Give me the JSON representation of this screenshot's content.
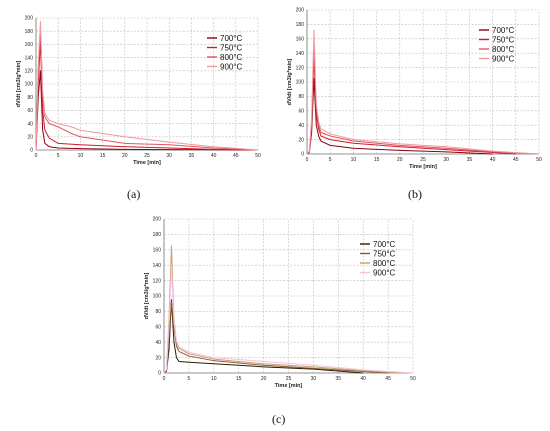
{
  "chart_data": [
    {
      "type": "line",
      "panel_label": "(a)",
      "xlabel": "Time [min]",
      "ylabel": "dV/dt [cm3/g*min]",
      "xlim": [
        0,
        50
      ],
      "ylim": [
        0,
        200
      ],
      "xticks": [
        0,
        5,
        10,
        15,
        20,
        25,
        30,
        35,
        40,
        45,
        50
      ],
      "yticks": [
        0,
        20,
        40,
        60,
        80,
        100,
        120,
        140,
        160,
        180,
        200
      ],
      "grid": true,
      "legend": "right",
      "series": [
        {
          "name": "700°C",
          "color": "#8b0010",
          "x": [
            0,
            0.5,
            1,
            1.5,
            2,
            3,
            4,
            5,
            10,
            20,
            30,
            40,
            50
          ],
          "y": [
            0,
            80,
            120,
            30,
            10,
            5,
            4,
            3,
            2,
            1,
            0.5,
            0.3,
            0
          ]
        },
        {
          "name": "750°C",
          "color": "#d01a2a",
          "x": [
            0,
            0.5,
            1,
            1.5,
            2,
            3,
            5,
            10,
            20,
            30,
            40,
            50
          ],
          "y": [
            0,
            100,
            165,
            60,
            30,
            18,
            10,
            8,
            5,
            3,
            1,
            0
          ]
        },
        {
          "name": "800°C",
          "color": "#e05560",
          "x": [
            0,
            0.5,
            1,
            1.5,
            2,
            3,
            5,
            8,
            10,
            20,
            30,
            40,
            50
          ],
          "y": [
            0,
            120,
            185,
            80,
            50,
            40,
            35,
            25,
            20,
            10,
            8,
            3,
            0
          ]
        },
        {
          "name": "900°C",
          "color": "#f09aa0",
          "x": [
            0,
            0.5,
            1,
            1.5,
            2,
            3,
            5,
            8,
            10,
            20,
            30,
            40,
            50
          ],
          "y": [
            0,
            130,
            195,
            90,
            55,
            45,
            40,
            35,
            30,
            20,
            12,
            5,
            0
          ]
        }
      ]
    },
    {
      "type": "line",
      "panel_label": "(b)",
      "xlabel": "Time [min]",
      "ylabel": "dV/dt [cm3/g*min]",
      "xlim": [
        0,
        50
      ],
      "ylim": [
        0,
        200
      ],
      "xticks": [
        0,
        5,
        10,
        15,
        20,
        25,
        30,
        35,
        40,
        45,
        50
      ],
      "yticks": [
        0,
        20,
        40,
        60,
        80,
        100,
        120,
        140,
        160,
        180,
        200
      ],
      "grid": true,
      "legend": "top-right",
      "series": [
        {
          "name": "700°C",
          "color": "#8b0010",
          "x": [
            0,
            0.5,
            1,
            1.5,
            2,
            2.5,
            3,
            5,
            10,
            20,
            30,
            40
          ],
          "y": [
            0,
            2,
            30,
            105,
            40,
            25,
            18,
            12,
            8,
            5,
            3,
            0
          ]
        },
        {
          "name": "750°C",
          "color": "#d01a2a",
          "x": [
            0,
            0.5,
            1,
            1.5,
            2,
            2.5,
            3,
            5,
            10,
            20,
            30,
            40,
            45
          ],
          "y": [
            0,
            2,
            40,
            135,
            55,
            35,
            25,
            20,
            15,
            10,
            6,
            2,
            0
          ]
        },
        {
          "name": "800°C",
          "color": "#e05560",
          "x": [
            0,
            0.5,
            1,
            1.5,
            2,
            2.5,
            3,
            5,
            10,
            20,
            30,
            40,
            50
          ],
          "y": [
            0,
            3,
            45,
            155,
            65,
            40,
            30,
            25,
            18,
            12,
            8,
            3,
            0
          ]
        },
        {
          "name": "900°C",
          "color": "#f09aa0",
          "x": [
            0,
            0.5,
            1,
            1.5,
            2,
            2.5,
            3,
            5,
            10,
            20,
            30,
            40,
            50
          ],
          "y": [
            0,
            4,
            50,
            172,
            70,
            45,
            35,
            28,
            20,
            14,
            10,
            4,
            0
          ]
        }
      ]
    },
    {
      "type": "line",
      "panel_label": "(c)",
      "xlabel": "Time [min]",
      "ylabel": "dV/dt [cm3/g*min]",
      "xlim": [
        0,
        50
      ],
      "ylim": [
        0,
        200
      ],
      "xticks": [
        0,
        5,
        10,
        15,
        20,
        25,
        30,
        35,
        40,
        45,
        50
      ],
      "yticks": [
        0,
        20,
        40,
        60,
        80,
        100,
        120,
        140,
        160,
        180,
        200
      ],
      "grid": true,
      "legend": "top-right",
      "series": [
        {
          "name": "700°C",
          "color": "#2a1a0a",
          "x": [
            0,
            0.5,
            1,
            1.5,
            2,
            2.5,
            3,
            5,
            10,
            20,
            30,
            40
          ],
          "y": [
            0,
            2,
            30,
            95,
            40,
            20,
            15,
            14,
            12,
            8,
            5,
            0
          ]
        },
        {
          "name": "750°C",
          "color": "#8a5a30",
          "x": [
            0,
            0.5,
            1,
            1.5,
            2,
            2.5,
            3,
            5,
            10,
            20,
            30,
            40,
            45
          ],
          "y": [
            0,
            3,
            45,
            93,
            60,
            35,
            28,
            22,
            16,
            10,
            6,
            2,
            0
          ]
        },
        {
          "name": "800°C",
          "color": "#c8a070",
          "x": [
            0,
            0.5,
            1,
            1.5,
            2,
            2.5,
            3,
            5,
            10,
            20,
            30,
            40,
            48
          ],
          "y": [
            0,
            4,
            70,
            165,
            70,
            40,
            32,
            25,
            18,
            12,
            8,
            3,
            0
          ]
        },
        {
          "name": "900°C",
          "color": "#f5c0e0",
          "x": [
            0,
            0.5,
            1,
            1.5,
            2,
            2.5,
            3,
            5,
            10,
            20,
            30,
            40,
            50
          ],
          "y": [
            0,
            5,
            60,
            140,
            65,
            42,
            34,
            27,
            20,
            15,
            10,
            4,
            0
          ]
        }
      ]
    }
  ]
}
